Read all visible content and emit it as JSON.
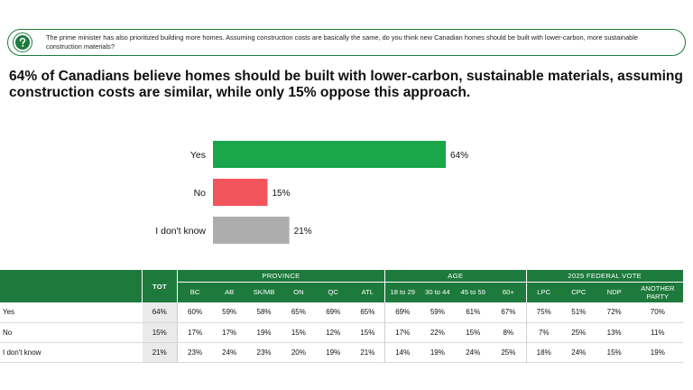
{
  "question": {
    "icon": "question-mark-icon",
    "text": "The prime minister has also prioritized building more homes. Assuming construction costs are basically the same, do you think new Canadian homes should be built with lower-carbon, more sustainable construction materials?"
  },
  "headline": "64% of Canadians believe homes should be built with lower-carbon, sustainable materials, assuming construction costs are similar, while only 15% oppose this approach.",
  "chart_data": {
    "type": "bar",
    "orientation": "horizontal",
    "categories": [
      "Yes",
      "No",
      "I don't know"
    ],
    "values": [
      64,
      15,
      21
    ],
    "value_labels": [
      "64%",
      "15%",
      "21%"
    ],
    "colors": [
      "#1aa64b",
      "#f2545b",
      "#adadad"
    ],
    "xlim": [
      0,
      64
    ],
    "grid": false
  },
  "table": {
    "tot_label": "TOT",
    "groups": [
      {
        "label": "PROVINCE",
        "cols": [
          "BC",
          "AB",
          "SK/MB",
          "ON",
          "QC",
          "ATL"
        ]
      },
      {
        "label": "AGE",
        "cols": [
          "18 to 29",
          "30 to 44",
          "45 to 59",
          "60+"
        ]
      },
      {
        "label": "2025 FEDERAL VOTE",
        "cols": [
          "LPC",
          "CPC",
          "NDP",
          "ANOTHER PARTY"
        ]
      }
    ],
    "rows": [
      {
        "label": "Yes",
        "tot": "64%",
        "cells": [
          {
            "v": "60%",
            "s": ""
          },
          {
            "v": "59%",
            "s": ""
          },
          {
            "v": "58%",
            "s": ""
          },
          {
            "v": "65%",
            "s": ""
          },
          {
            "v": "69%",
            "s": "pos"
          },
          {
            "v": "65%",
            "s": ""
          },
          {
            "v": "69%",
            "s": ""
          },
          {
            "v": "59%",
            "s": ""
          },
          {
            "v": "61%",
            "s": ""
          },
          {
            "v": "67%",
            "s": ""
          },
          {
            "v": "75%",
            "s": "pos"
          },
          {
            "v": "51%",
            "s": "neg"
          },
          {
            "v": "72%",
            "s": ""
          },
          {
            "v": "70%",
            "s": ""
          }
        ]
      },
      {
        "label": "No",
        "tot": "15%",
        "cells": [
          {
            "v": "17%",
            "s": ""
          },
          {
            "v": "17%",
            "s": ""
          },
          {
            "v": "19%",
            "s": ""
          },
          {
            "v": "15%",
            "s": ""
          },
          {
            "v": "12%",
            "s": ""
          },
          {
            "v": "15%",
            "s": ""
          },
          {
            "v": "17%",
            "s": ""
          },
          {
            "v": "22%",
            "s": "pos"
          },
          {
            "v": "15%",
            "s": ""
          },
          {
            "v": "8%",
            "s": "neg"
          },
          {
            "v": "7%",
            "s": "neg"
          },
          {
            "v": "25%",
            "s": "pos"
          },
          {
            "v": "13%",
            "s": ""
          },
          {
            "v": "11%",
            "s": ""
          }
        ]
      },
      {
        "label": "I don't know",
        "tot": "21%",
        "cells": [
          {
            "v": "23%",
            "s": ""
          },
          {
            "v": "24%",
            "s": ""
          },
          {
            "v": "23%",
            "s": ""
          },
          {
            "v": "20%",
            "s": ""
          },
          {
            "v": "19%",
            "s": ""
          },
          {
            "v": "21%",
            "s": ""
          },
          {
            "v": "14%",
            "s": "neg"
          },
          {
            "v": "19%",
            "s": ""
          },
          {
            "v": "24%",
            "s": ""
          },
          {
            "v": "25%",
            "s": ""
          },
          {
            "v": "18%",
            "s": ""
          },
          {
            "v": "24%",
            "s": "pos"
          },
          {
            "v": "15%",
            "s": ""
          },
          {
            "v": "19%",
            "s": ""
          }
        ]
      }
    ]
  },
  "colors": {
    "brand_green": "#1e7a3c",
    "significant_high": "#2e8b34",
    "significant_low": "#c8202a"
  }
}
